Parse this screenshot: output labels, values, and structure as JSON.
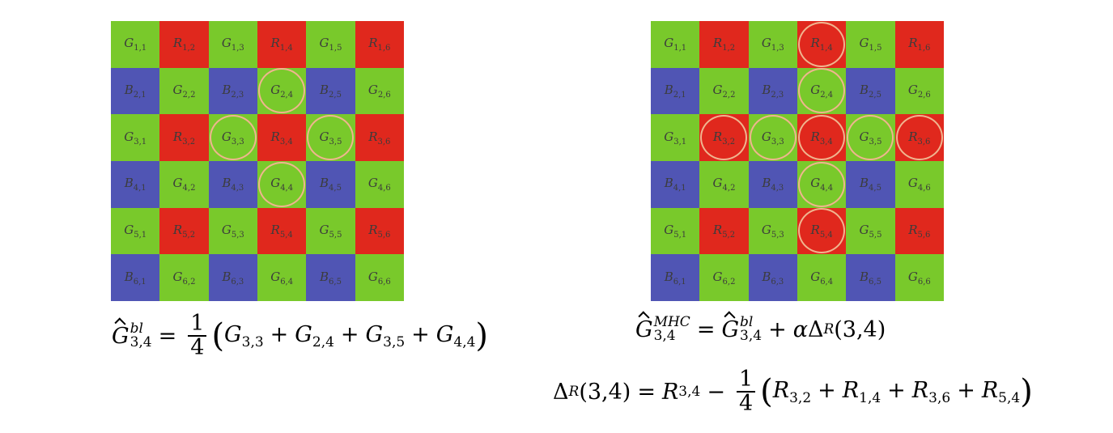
{
  "grid_left": {
    "cells": [
      [
        "G_1,1",
        "R_1,2",
        "G_1,3",
        "R_1,4",
        "G_1,5",
        "R_1,6"
      ],
      [
        "B_2,1",
        "G_2,2",
        "B_2,3",
        "G_2,4",
        "B_2,5",
        "G_2,6"
      ],
      [
        "G_3,1",
        "R_3,2",
        "G_3,3",
        "R_3,4",
        "G_3,5",
        "R_3,6"
      ],
      [
        "B_4,1",
        "G_4,2",
        "B_4,3",
        "G_4,4",
        "B_4,5",
        "G_4,6"
      ],
      [
        "G_5,1",
        "R_5,2",
        "G_5,3",
        "R_5,4",
        "G_5,5",
        "R_5,6"
      ],
      [
        "B_6,1",
        "G_6,2",
        "B_6,3",
        "G_6,4",
        "B_6,5",
        "G_6,6"
      ]
    ],
    "highlighted": [
      "G_2,4",
      "G_3,3",
      "G_3,5",
      "G_4,4"
    ]
  },
  "grid_right": {
    "cells": [
      [
        "G_1,1",
        "R_1,2",
        "G_1,3",
        "R_1,4",
        "G_1,5",
        "R_1,6"
      ],
      [
        "B_2,1",
        "G_2,2",
        "B_2,3",
        "G_2,4",
        "B_2,5",
        "G_2,6"
      ],
      [
        "G_3,1",
        "R_3,2",
        "G_3,3",
        "R_3,4",
        "G_3,5",
        "R_3,6"
      ],
      [
        "B_4,1",
        "G_4,2",
        "B_4,3",
        "G_4,4",
        "B_4,5",
        "G_4,6"
      ],
      [
        "G_5,1",
        "R_5,2",
        "G_5,3",
        "R_5,4",
        "G_5,5",
        "R_5,6"
      ],
      [
        "B_6,1",
        "G_6,2",
        "B_6,3",
        "G_6,4",
        "B_6,5",
        "G_6,6"
      ]
    ],
    "highlighted": [
      "R_1,4",
      "G_2,4",
      "R_3,2",
      "G_3,3",
      "R_3,4",
      "G_3,5",
      "R_3,6",
      "G_4,4",
      "R_5,4"
    ]
  },
  "colors": {
    "G": "#79c92b",
    "R": "#e0281d",
    "B": "#5055b4",
    "ring": "#f0b58f"
  },
  "formula_left": {
    "lhs_base": "G",
    "lhs_sup": "bl",
    "lhs_sub": "3,4",
    "eq": "=",
    "frac_num": "1",
    "frac_den": "4",
    "terms": [
      {
        "base": "G",
        "sub": "3,3"
      },
      {
        "base": "G",
        "sub": "2,4"
      },
      {
        "base": "G",
        "sub": "3,5"
      },
      {
        "base": "G",
        "sub": "4,4"
      }
    ],
    "plus": "+"
  },
  "formula_right_1": {
    "lhs_base": "G",
    "lhs_sup": "MHC",
    "lhs_sub": "3,4",
    "eq": "=",
    "rhs_base": "G",
    "rhs_sup": "bl",
    "rhs_sub": "3,4",
    "plus": "+",
    "alpha": "α",
    "delta": "Δ",
    "delta_sub": "R",
    "delta_arg": "(3,4)"
  },
  "formula_right_2": {
    "delta": "Δ",
    "delta_sub": "R",
    "delta_arg": "(3,4)",
    "eq": "=",
    "first_base": "R",
    "first_sub": "3,4",
    "minus": "−",
    "frac_num": "1",
    "frac_den": "4",
    "terms": [
      {
        "base": "R",
        "sub": "3,2"
      },
      {
        "base": "R",
        "sub": "1,4"
      },
      {
        "base": "R",
        "sub": "3,6"
      },
      {
        "base": "R",
        "sub": "5,4"
      }
    ],
    "plus": "+"
  }
}
